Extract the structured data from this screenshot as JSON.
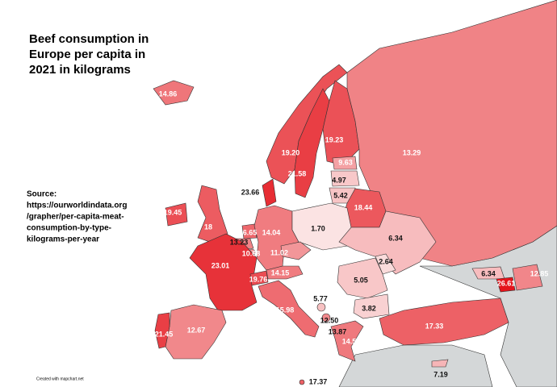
{
  "map": {
    "title": [
      "Beef consumption in",
      "Europe per capita in",
      "2021 in kilograms"
    ],
    "source": [
      "Source:",
      "https://ourworldindata.org",
      "/grapher/per-capita-meat-",
      "consumption-by-type-",
      "kilograms-per-year"
    ],
    "credit": "Created with mapchart.net",
    "color_scale": [
      "#fbe3e3",
      "#e4141c"
    ],
    "regions": [
      {
        "value": 14.86,
        "value_label": "14.86"
      },
      {
        "value": 19.2,
        "value_label": "19.20"
      },
      {
        "value": 21.58,
        "value_label": "21.58"
      },
      {
        "value": 19.23,
        "value_label": "19.23"
      },
      {
        "value": 13.29,
        "value_label": "13.29"
      },
      {
        "value": 9.63,
        "value_label": "9.63"
      },
      {
        "value": 4.97,
        "value_label": "4.97"
      },
      {
        "value": 5.42,
        "value_label": "5.42"
      },
      {
        "value": 23.66,
        "value_label": "23.66"
      },
      {
        "value": 18.44,
        "value_label": "18.44"
      },
      {
        "value": 19.45,
        "value_label": "19.45"
      },
      {
        "value": 18,
        "value_label": "18"
      },
      {
        "value": 16.65,
        "value_label": "16.65"
      },
      {
        "value": 13.23,
        "value_label": "13.23"
      },
      {
        "value": 10.68,
        "value_label": "10.68"
      },
      {
        "value": 14.04,
        "value_label": "14.04"
      },
      {
        "value": 1.7,
        "value_label": "1.70"
      },
      {
        "value": 6.34,
        "value_label": "6.34"
      },
      {
        "value": 11.02,
        "value_label": "11.02"
      },
      {
        "value": 2.64,
        "value_label": "2.64"
      },
      {
        "value": 23.01,
        "value_label": "23.01"
      },
      {
        "value": 19.76,
        "value_label": "19.76"
      },
      {
        "value": 14.15,
        "value_label": "14.15"
      },
      {
        "value": 5.05,
        "value_label": "5.05"
      },
      {
        "value": 3.82,
        "value_label": "3.82"
      },
      {
        "value": 15.98,
        "value_label": "15.98"
      },
      {
        "value": 5.77,
        "value_label": "5.77"
      },
      {
        "value": 12.5,
        "value_label": "12.50"
      },
      {
        "value": 13.87,
        "value_label": "13.87"
      },
      {
        "value": 14.51,
        "value_label": "14.51"
      },
      {
        "value": 12.67,
        "value_label": "12.67"
      },
      {
        "value": 21.45,
        "value_label": "21.45"
      },
      {
        "value": 17.33,
        "value_label": "17.33"
      },
      {
        "value": 6.34,
        "value_label": "6.34"
      },
      {
        "value": 26.61,
        "value_label": "26.61"
      },
      {
        "value": 12.85,
        "value_label": "12.85"
      },
      {
        "value": 7.19,
        "value_label": "7.19"
      },
      {
        "value": 17.37,
        "value_label": "17.37"
      }
    ]
  }
}
